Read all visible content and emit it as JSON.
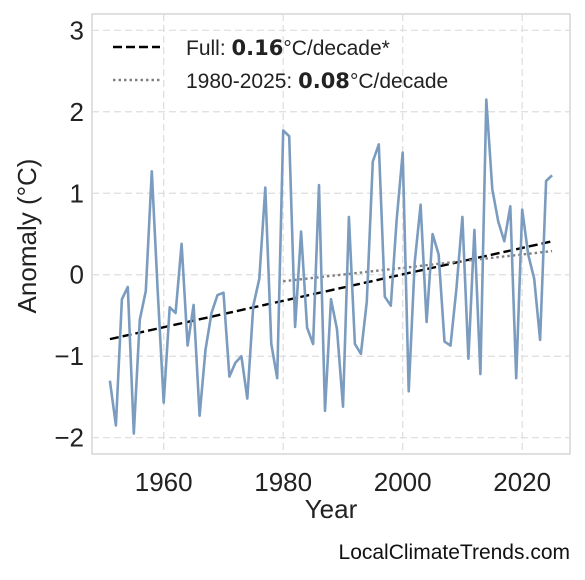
{
  "chart_data": {
    "type": "line",
    "xlabel": "Year",
    "ylabel": "Anomaly (°C)",
    "xlim": [
      1948,
      2028
    ],
    "ylim": [
      -2.2,
      3.2
    ],
    "xticks": [
      1960,
      1980,
      2000,
      2020
    ],
    "yticks": [
      -2,
      -1,
      0,
      1,
      2,
      3
    ],
    "grid": true,
    "legend_position": "top-left",
    "series": [
      {
        "color": "#7b9cbf",
        "x": [
          1951,
          1952,
          1953,
          1954,
          1955,
          1956,
          1957,
          1958,
          1959,
          1960,
          1961,
          1962,
          1963,
          1964,
          1965,
          1966,
          1967,
          1968,
          1969,
          1970,
          1971,
          1972,
          1973,
          1974,
          1975,
          1976,
          1977,
          1978,
          1979,
          1980,
          1981,
          1982,
          1983,
          1984,
          1985,
          1986,
          1987,
          1988,
          1989,
          1990,
          1991,
          1992,
          1993,
          1994,
          1995,
          1996,
          1997,
          1998,
          1999,
          2000,
          2001,
          2002,
          2003,
          2004,
          2005,
          2006,
          2007,
          2008,
          2009,
          2010,
          2011,
          2012,
          2013,
          2014,
          2015,
          2016,
          2017,
          2018,
          2019,
          2020,
          2021,
          2022,
          2023,
          2024,
          2025
        ],
        "values": [
          -1.3,
          -1.85,
          -0.3,
          -0.15,
          -1.95,
          -0.55,
          -0.2,
          1.27,
          -0.2,
          -1.57,
          -0.4,
          -0.47,
          0.38,
          -0.87,
          -0.37,
          -1.73,
          -0.92,
          -0.47,
          -0.25,
          -0.22,
          -1.25,
          -1.08,
          -1.0,
          -1.52,
          -0.38,
          -0.05,
          1.07,
          -0.85,
          -1.27,
          1.77,
          1.7,
          -0.64,
          0.53,
          -0.65,
          -0.85,
          1.1,
          -1.67,
          -0.3,
          -0.67,
          -1.62,
          0.71,
          -0.85,
          -0.97,
          -0.33,
          1.39,
          1.6,
          -0.27,
          -0.38,
          0.68,
          1.5,
          -1.43,
          0.15,
          0.86,
          -0.58,
          0.5,
          0.25,
          -0.82,
          -0.87,
          -0.16,
          0.71,
          -1.03,
          0.55,
          -1.22,
          2.15,
          1.05,
          0.65,
          0.41,
          0.84,
          -1.27,
          0.8,
          0.25,
          -0.05,
          -0.8,
          1.15,
          1.22
        ]
      }
    ],
    "trends": [
      {
        "label_prefix": "Full: ",
        "rate": "0.16",
        "label_suffix": "°C/decade*",
        "style": "dashed",
        "color": "#000000",
        "x": [
          1951,
          2025
        ],
        "y": [
          -0.79,
          0.41
        ]
      },
      {
        "label_prefix": "1980-2025: ",
        "rate": "0.08",
        "label_suffix": "°C/decade",
        "style": "dotted",
        "color": "#808080",
        "x": [
          1980,
          2025
        ],
        "y": [
          -0.08,
          0.29
        ]
      }
    ]
  },
  "watermark": "LocalClimateTrends.com"
}
